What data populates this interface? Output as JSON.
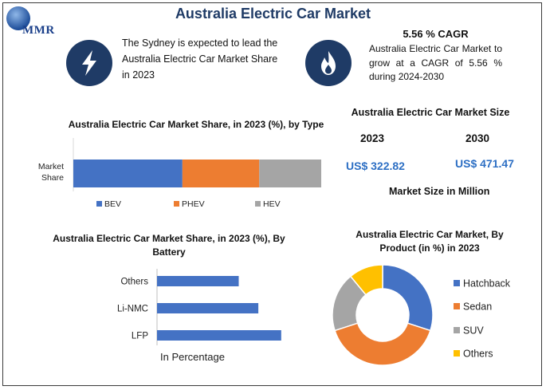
{
  "title": "Australia Electric Car Market",
  "logo": {
    "text": "MMR"
  },
  "headline": {
    "lead_text": "The Sydney is expected to lead the Australia Electric Car Market Share in 2023",
    "cagr_title": "5.56 % CAGR",
    "cagr_text": "Australia Electric Car Market to grow at a CAGR of 5.56 % during 2024-2030",
    "icons": [
      "lightning-bolt-icon",
      "flame-icon"
    ]
  },
  "market_size": {
    "title": "Australia Electric Car Market Size",
    "year1": "2023",
    "year2": "2030",
    "value1": "US$ 322.82",
    "value2": "US$ 471.47",
    "unit_label": "Market Size in Million"
  },
  "colors": {
    "blue": "#4472c4",
    "orange": "#ed7d31",
    "gray": "#a5a5a5",
    "yellow": "#ffc000",
    "navy": "#1f3b66",
    "value_blue": "#2d6fc4"
  },
  "chart_data": [
    {
      "type": "bar",
      "orientation": "horizontal-stacked",
      "title": "Australia Electric Car Market Share, in 2023 (%), by Type",
      "categories": [
        "Market Share"
      ],
      "series": [
        {
          "name": "BEV",
          "values": [
            44
          ]
        },
        {
          "name": "PHEV",
          "values": [
            31
          ]
        },
        {
          "name": "HEV",
          "values": [
            25
          ]
        }
      ],
      "legend": "bottom"
    },
    {
      "type": "bar",
      "orientation": "horizontal",
      "title": "Australia Electric Car Market Share, in 2023 (%), By Battery",
      "categories": [
        "Others",
        "Li-NMC",
        "LFP"
      ],
      "values": [
        25,
        31,
        38
      ],
      "xlabel": "In Percentage"
    },
    {
      "type": "pie",
      "variant": "donut",
      "title": "Australia Electric Car Market, By Product (in %) in 2023",
      "categories": [
        "Hatchback",
        "Sedan",
        "SUV",
        "Others"
      ],
      "values": [
        30,
        40,
        19,
        11
      ],
      "legend": "right"
    }
  ]
}
